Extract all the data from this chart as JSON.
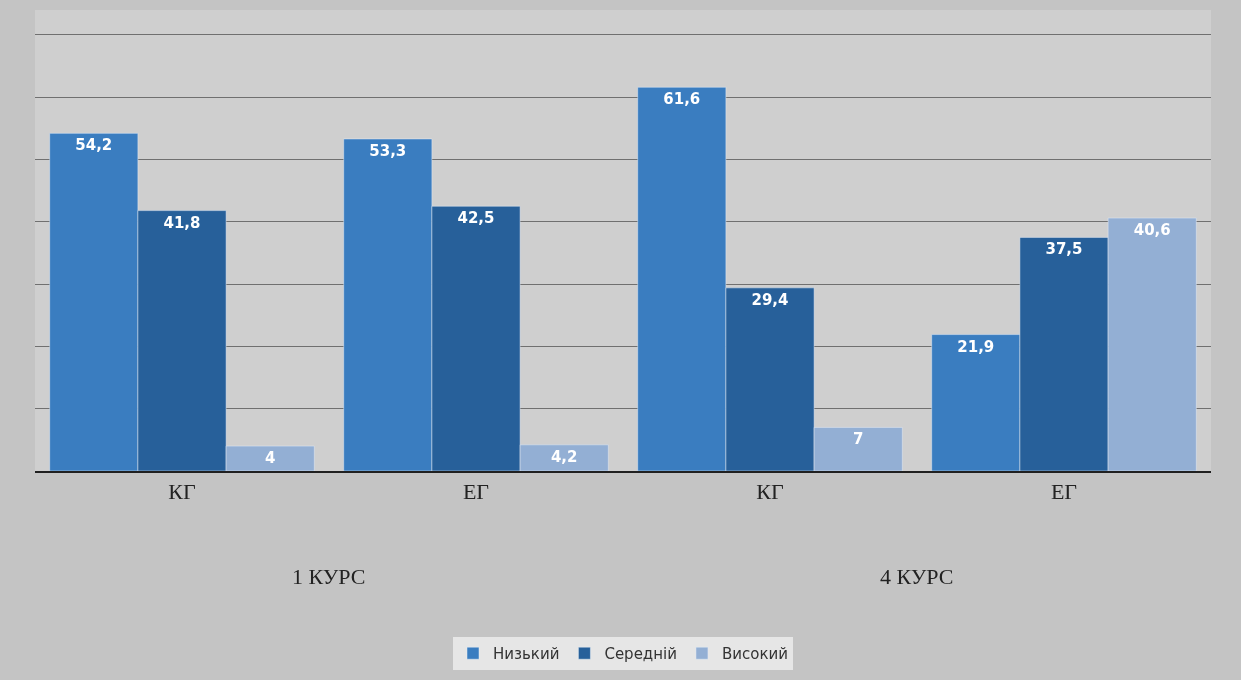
{
  "chart_data": {
    "type": "bar",
    "categories": [
      "КГ",
      "ЕГ",
      "КГ",
      "ЕГ"
    ],
    "series": [
      {
        "name": "Низький",
        "color": "#3a7dc0",
        "values": [
          54.2,
          53.3,
          61.6,
          21.9
        ],
        "value_labels": [
          "54,2",
          "53,3",
          "61,6",
          "21,9"
        ]
      },
      {
        "name": "Середній",
        "color": "#27609a",
        "values": [
          41.8,
          42.5,
          29.4,
          37.5
        ],
        "value_labels": [
          "41,8",
          "42,5",
          "29,4",
          "37,5"
        ]
      },
      {
        "name": "Високий",
        "color": "#93afd4",
        "values": [
          4,
          4.2,
          7,
          40.6
        ],
        "value_labels": [
          "4",
          "4,2",
          "7",
          "40,6"
        ]
      }
    ],
    "annotations": [
      "1 КУРС",
      "4 КУРС"
    ],
    "ylim": [
      0,
      74
    ],
    "yticks": [
      {
        "value": 10,
        "label": null
      },
      {
        "value": 20,
        "label": null
      },
      {
        "value": 30,
        "label": null
      },
      {
        "value": 40,
        "label": null
      },
      {
        "value": 50,
        "label": null
      },
      {
        "value": 60,
        "label": null
      },
      {
        "value": 70,
        "label": null
      }
    ],
    "tick_labels": "x",
    "grid": "y",
    "legend": "bottom"
  }
}
